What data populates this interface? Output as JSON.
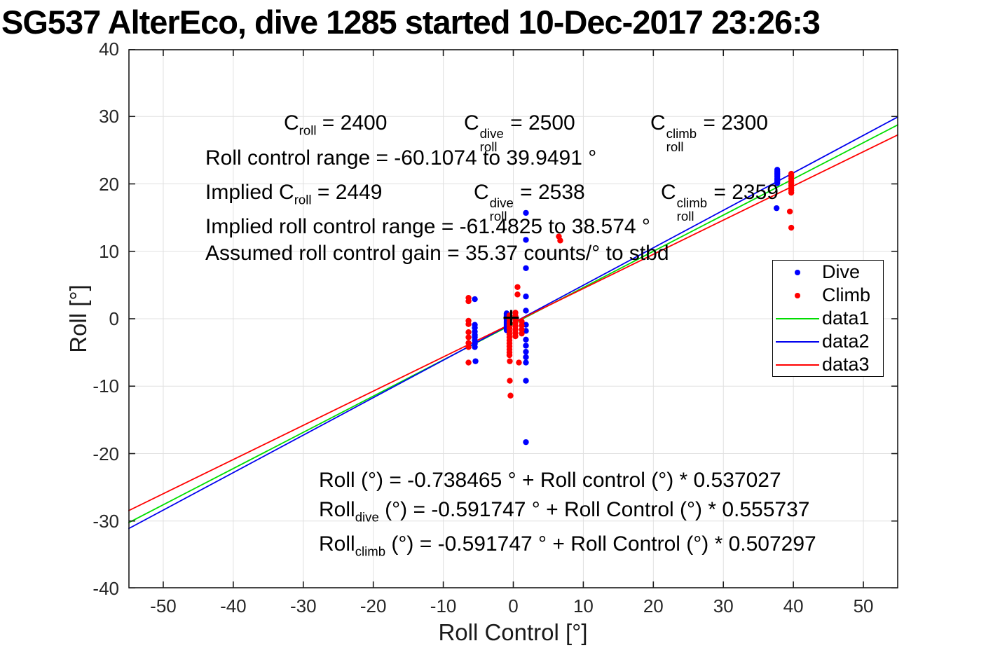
{
  "title": "SG537 AlterEco, dive 1285 started 10-Dec-2017 23:26:3",
  "axes": {
    "xlabel": "Roll Control [°]",
    "ylabel": "Roll [°]"
  },
  "annotations": {
    "c_nominal": [
      "C_{roll} = 2400",
      "C^{dive}_{roll} = 2500",
      "C^{climb}_{roll} = 2300"
    ],
    "roll_range": "Roll control range = -60.1074 to 39.9491 °",
    "c_implied": [
      "Implied C_{roll} = 2449",
      "C^{dive}_{roll} = 2538",
      "C^{climb}_{roll} = 2359"
    ],
    "implied_range": "Implied roll control range = -61.4825 to 38.574 °",
    "gain": "Assumed roll control gain = 35.37 counts/° to stbd",
    "fit_all": "Roll (°) = -0.738465 ° + Roll control (°) * 0.537027",
    "fit_dive": "Roll_{dive} (°) = -0.591747 ° + Roll Control (°) * 0.555737",
    "fit_climb": "Roll_{climb} (°) = -0.591747 ° + Roll Control (°) * 0.507297"
  },
  "legend": {
    "entries": [
      {
        "label": "Dive",
        "marker": "dot",
        "color": "#0000ff"
      },
      {
        "label": "Climb",
        "marker": "dot",
        "color": "#ff0000"
      },
      {
        "label": "data1",
        "marker": "line",
        "color": "#00dd00"
      },
      {
        "label": "data2",
        "marker": "line",
        "color": "#0000ee"
      },
      {
        "label": "data3",
        "marker": "line",
        "color": "#ff0000"
      }
    ]
  },
  "chart_data": {
    "type": "scatter",
    "title": "SG537 AlterEco, dive 1285 started 10-Dec-2017 23:26:3",
    "xlabel": "Roll Control [°]",
    "ylabel": "Roll [°]",
    "xlim": [
      -55,
      55
    ],
    "ylim": [
      -40,
      40
    ],
    "xticks": [
      -50,
      -40,
      -30,
      -20,
      -10,
      0,
      10,
      20,
      30,
      40,
      50
    ],
    "yticks": [
      -40,
      -30,
      -20,
      -10,
      0,
      10,
      20,
      30,
      40
    ],
    "grid": true,
    "legend_position": "right-middle",
    "grid_color": "#e0e0e0",
    "axis_color": "#1a1a1a",
    "series": [
      {
        "name": "Dive",
        "color": "#0000ff",
        "marker": "dot",
        "points": [
          [
            -5.5,
            2.9
          ],
          [
            -5.5,
            -0.9
          ],
          [
            -5.5,
            -1.35
          ],
          [
            -5.5,
            -1.9
          ],
          [
            -5.5,
            -2.4
          ],
          [
            -5.5,
            -2.75
          ],
          [
            -5.5,
            -3.2
          ],
          [
            -5.5,
            -3.7
          ],
          [
            -5.5,
            -4.2
          ],
          [
            -5.4,
            -6.3
          ],
          [
            -0.95,
            0.8
          ],
          [
            -0.95,
            0.63
          ],
          [
            -0.95,
            0.47
          ],
          [
            -0.95,
            0.3
          ],
          [
            -0.95,
            0.13
          ],
          [
            -0.95,
            -0.03
          ],
          [
            -0.95,
            -0.2
          ],
          [
            -0.95,
            -0.37
          ],
          [
            -0.95,
            -0.53
          ],
          [
            -0.95,
            -0.7
          ],
          [
            -0.95,
            -0.87
          ],
          [
            -0.95,
            -1.03
          ],
          [
            -0.95,
            -1.2
          ],
          [
            -0.95,
            -1.37
          ],
          [
            -0.95,
            -1.53
          ],
          [
            -0.95,
            -1.7
          ],
          [
            1.8,
            15.7
          ],
          [
            1.8,
            11.7
          ],
          [
            1.8,
            7.5
          ],
          [
            1.8,
            3.3
          ],
          [
            1.8,
            1.2
          ],
          [
            1.8,
            -0.9
          ],
          [
            1.8,
            -1.8
          ],
          [
            1.8,
            -3.1
          ],
          [
            1.8,
            -4.0
          ],
          [
            1.8,
            -4.9
          ],
          [
            1.8,
            -5.7
          ],
          [
            1.8,
            -6.5
          ],
          [
            1.8,
            -9.2
          ],
          [
            1.8,
            -18.3
          ],
          [
            37.7,
            22.1
          ],
          [
            37.7,
            21.85
          ],
          [
            37.7,
            21.6
          ],
          [
            37.7,
            21.35
          ],
          [
            37.7,
            21.1
          ],
          [
            37.7,
            20.85
          ],
          [
            37.7,
            20.6
          ],
          [
            37.7,
            20.35
          ],
          [
            37.7,
            20.1
          ],
          [
            37.6,
            16.4
          ]
        ]
      },
      {
        "name": "Climb",
        "color": "#ff0000",
        "marker": "dot",
        "points": [
          [
            -6.4,
            3.1
          ],
          [
            -6.4,
            2.6
          ],
          [
            -6.4,
            -0.3
          ],
          [
            -6.4,
            -0.8
          ],
          [
            -6.4,
            -2.0
          ],
          [
            -6.4,
            -2.75
          ],
          [
            -6.4,
            -3.6
          ],
          [
            -6.4,
            -4.2
          ],
          [
            -6.4,
            -6.5
          ],
          [
            0.6,
            4.7
          ],
          [
            0.6,
            3.6
          ],
          [
            -0.55,
            0.5
          ],
          [
            -0.55,
            -0.05
          ],
          [
            -0.55,
            -0.5
          ],
          [
            -0.55,
            -0.95
          ],
          [
            -0.55,
            -1.4
          ],
          [
            -0.55,
            -1.85
          ],
          [
            -0.55,
            -2.3
          ],
          [
            -0.55,
            -2.75
          ],
          [
            -0.55,
            -3.2
          ],
          [
            -0.55,
            -3.65
          ],
          [
            -0.55,
            -4.1
          ],
          [
            -0.55,
            -4.55
          ],
          [
            -0.55,
            -5.0
          ],
          [
            -0.55,
            -5.4
          ],
          [
            0.3,
            0.9
          ],
          [
            0.3,
            0.4
          ],
          [
            0.3,
            -0.1
          ],
          [
            0.3,
            -0.6
          ],
          [
            0.3,
            -1.1
          ],
          [
            0.3,
            -1.6
          ],
          [
            0.3,
            -2.1
          ],
          [
            0.3,
            -2.6
          ],
          [
            1.2,
            -0.4
          ],
          [
            1.2,
            -1.0
          ],
          [
            1.2,
            -1.6
          ],
          [
            1.2,
            -2.2
          ],
          [
            -0.5,
            -6.3
          ],
          [
            0.8,
            -6.5
          ],
          [
            -0.5,
            -9.2
          ],
          [
            -0.4,
            -11.4
          ],
          [
            6.5,
            12.2
          ],
          [
            6.7,
            11.6
          ],
          [
            39.7,
            21.5
          ],
          [
            39.7,
            21.15
          ],
          [
            39.7,
            20.8
          ],
          [
            39.7,
            20.45
          ],
          [
            39.7,
            20.1
          ],
          [
            39.7,
            19.75
          ],
          [
            39.7,
            19.4
          ],
          [
            39.7,
            19.05
          ],
          [
            39.7,
            18.7
          ],
          [
            39.5,
            15.9
          ],
          [
            39.7,
            13.5
          ]
        ]
      }
    ],
    "fit_lines": [
      {
        "name": "data1",
        "color": "#00dd00",
        "intercept": -0.738465,
        "slope": 0.537027
      },
      {
        "name": "data2",
        "color": "#0000ee",
        "intercept": -0.591747,
        "slope": 0.555737
      },
      {
        "name": "data3",
        "color": "#ff0000",
        "intercept": -0.591747,
        "slope": 0.507297
      }
    ],
    "reference_marker": {
      "symbol": "+",
      "x": -0.3,
      "y": 0.15,
      "color": "#000000"
    }
  }
}
